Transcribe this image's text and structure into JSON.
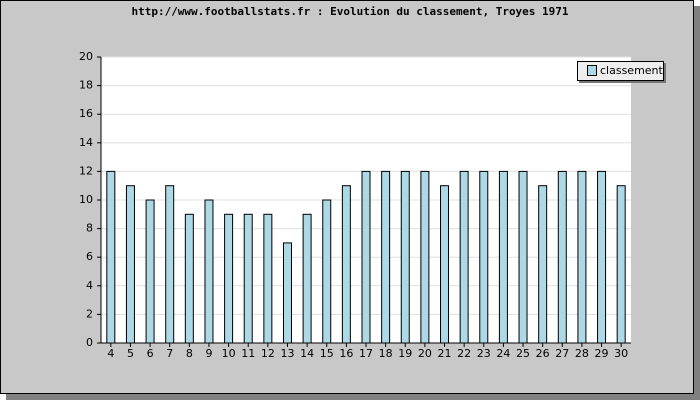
{
  "chart_data": {
    "type": "bar",
    "title": "http://www.footballstats.fr : Evolution du classement, Troyes 1971",
    "categories": [
      4,
      5,
      6,
      7,
      8,
      9,
      10,
      11,
      12,
      13,
      14,
      15,
      16,
      17,
      18,
      19,
      20,
      21,
      22,
      23,
      24,
      25,
      26,
      27,
      28,
      29,
      30
    ],
    "series": [
      {
        "name": "classement",
        "color": "#add8e6",
        "values": [
          12,
          11,
          10,
          11,
          9,
          10,
          9,
          9,
          9,
          7,
          9,
          10,
          11,
          12,
          12,
          12,
          12,
          11,
          12,
          12,
          12,
          12,
          11,
          12,
          12,
          12,
          11
        ]
      }
    ],
    "ylim": [
      0,
      20
    ],
    "yticks": [
      0,
      2,
      4,
      6,
      8,
      10,
      12,
      14,
      16,
      18,
      20
    ],
    "grid": true,
    "legend": "top-right"
  }
}
